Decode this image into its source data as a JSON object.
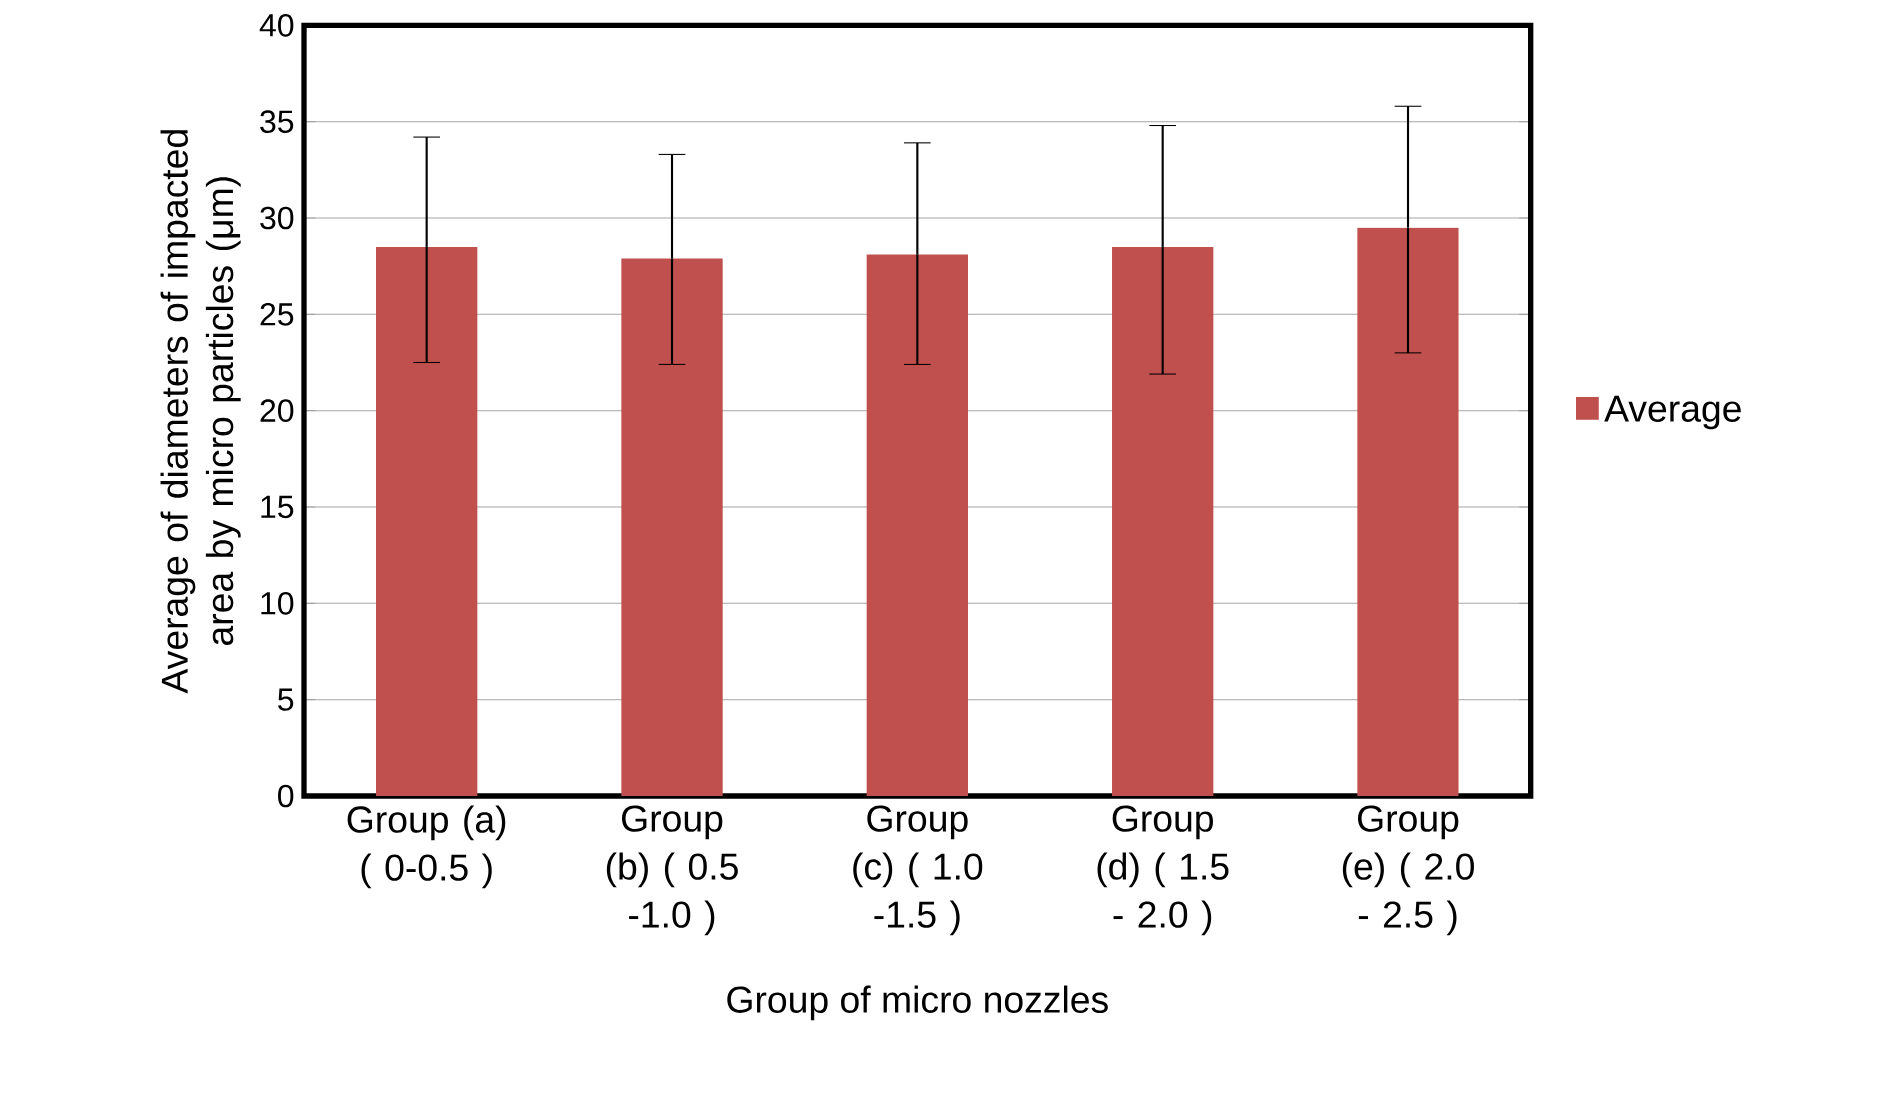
{
  "chart_data": {
    "type": "bar",
    "xlabel": "Group of micro nozzles",
    "ylabel": "Average of diameters of impacted area by micro particles (μm)",
    "categories": [
      "Group (a) ( 0-0.5 )",
      "Group (b) ( 0.5 -1.0 )",
      "Group (c) ( 1.0 -1.5 )",
      "Group (d) ( 1.5 - 2.0 )",
      "Group (e) ( 2.0 - 2.5 )"
    ],
    "series": [
      {
        "name": "Average",
        "color": "#c0504d",
        "values": [
          28.5,
          27.9,
          28.1,
          28.5,
          29.5
        ],
        "errors": [
          [
            22.5,
            34.2
          ],
          [
            22.4,
            33.3
          ],
          [
            22.4,
            33.9
          ],
          [
            21.9,
            34.8
          ],
          [
            23.0,
            35.8
          ]
        ]
      }
    ],
    "ylim": [
      0,
      40
    ],
    "yticks": [
      0,
      5,
      10,
      15,
      20,
      25,
      30,
      35,
      40
    ],
    "grid": "y",
    "legend": "right"
  }
}
